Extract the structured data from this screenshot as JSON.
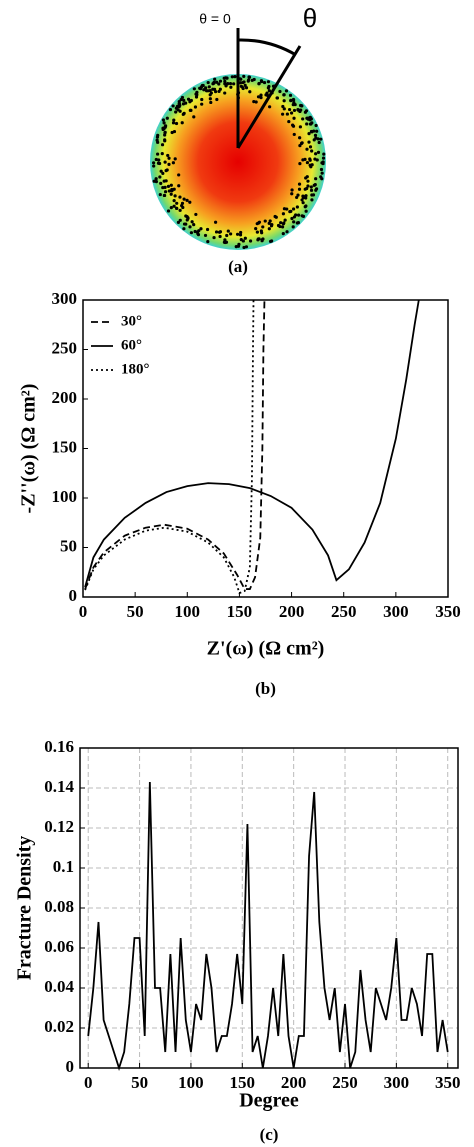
{
  "panel_a": {
    "zero_label": "θ = 0",
    "theta_label": "θ",
    "caption": "(a)"
  },
  "chart_data": [
    {
      "type": "line",
      "caption": "(b)",
      "x_label": "Z'(ω) (Ω cm²)",
      "y_label": "-Z''(ω) (Ω cm²)",
      "xlim": [
        0,
        350
      ],
      "ylim": [
        0,
        300
      ],
      "xticks": [
        0,
        50,
        100,
        150,
        200,
        250,
        300,
        350
      ],
      "yticks": [
        0,
        50,
        100,
        150,
        200,
        250,
        300
      ],
      "grid": false,
      "legend": "top-left",
      "series": [
        {
          "name": "30°",
          "color": "#000000",
          "dash": "dashed",
          "x": [
            2,
            10,
            20,
            40,
            60,
            78,
            100,
            120,
            135,
            148,
            155,
            160,
            165,
            170,
            172,
            173,
            174
          ],
          "values": [
            8,
            30,
            45,
            62,
            70,
            73,
            69,
            58,
            44,
            22,
            8,
            8,
            20,
            60,
            150,
            250,
            300
          ]
        },
        {
          "name": "60°",
          "color": "#000000",
          "dash": "solid",
          "x": [
            2,
            10,
            20,
            40,
            60,
            80,
            100,
            120,
            140,
            160,
            180,
            200,
            220,
            235,
            243,
            255,
            270,
            285,
            300,
            310,
            318,
            322
          ],
          "values": [
            10,
            40,
            58,
            80,
            95,
            106,
            112,
            115,
            114,
            110,
            102,
            90,
            68,
            42,
            17,
            28,
            55,
            95,
            160,
            220,
            275,
            300
          ]
        },
        {
          "name": "180°",
          "color": "#000000",
          "dash": "dotted",
          "x": [
            2,
            10,
            20,
            40,
            60,
            78,
            100,
            120,
            135,
            145,
            150,
            155,
            160,
            162,
            163,
            163.5
          ],
          "values": [
            7,
            28,
            42,
            58,
            67,
            70,
            66,
            55,
            40,
            20,
            4,
            6,
            30,
            120,
            250,
            300
          ]
        }
      ]
    },
    {
      "type": "line",
      "caption": "(c)",
      "x_label": "Degree",
      "y_label": "Fracture Density",
      "xlim": [
        -8,
        360
      ],
      "ylim": [
        0,
        0.16
      ],
      "xticks": [
        0,
        50,
        100,
        150,
        200,
        250,
        300,
        350
      ],
      "yticks": [
        0,
        0.02,
        0.04,
        0.06,
        0.08,
        0.1,
        0.12,
        0.14,
        0.16
      ],
      "grid": true,
      "series": [
        {
          "color": "#000000",
          "dash": "solid",
          "x": [
            0,
            5,
            10,
            15,
            20,
            25,
            30,
            35,
            40,
            45,
            50,
            55,
            60,
            65,
            70,
            75,
            80,
            85,
            90,
            95,
            100,
            105,
            110,
            115,
            120,
            125,
            130,
            135,
            140,
            145,
            150,
            155,
            160,
            165,
            170,
            175,
            180,
            185,
            190,
            195,
            200,
            205,
            210,
            215,
            220,
            225,
            230,
            235,
            240,
            245,
            250,
            255,
            260,
            265,
            270,
            275,
            280,
            285,
            290,
            295,
            300,
            305,
            310,
            315,
            320,
            325,
            330,
            335,
            340,
            345,
            350
          ],
          "values": [
            0.016,
            0.04,
            0.073,
            0.024,
            0.016,
            0.008,
            0,
            0.008,
            0.032,
            0.065,
            0.065,
            0.016,
            0.143,
            0.04,
            0.04,
            0.008,
            0.057,
            0.008,
            0.065,
            0.024,
            0.008,
            0.032,
            0.024,
            0.057,
            0.04,
            0.008,
            0.016,
            0.016,
            0.032,
            0.057,
            0.032,
            0.122,
            0.008,
            0.016,
            0,
            0.016,
            0.04,
            0.016,
            0.057,
            0.016,
            0,
            0.016,
            0.016,
            0.106,
            0.138,
            0.073,
            0.04,
            0.024,
            0.04,
            0.008,
            0.032,
            0,
            0.008,
            0.049,
            0.024,
            0.008,
            0.04,
            0.032,
            0.024,
            0.04,
            0.065,
            0.024,
            0.024,
            0.04,
            0.032,
            0.016,
            0.057,
            0.057,
            0.008,
            0.024,
            0.008
          ]
        }
      ]
    }
  ]
}
